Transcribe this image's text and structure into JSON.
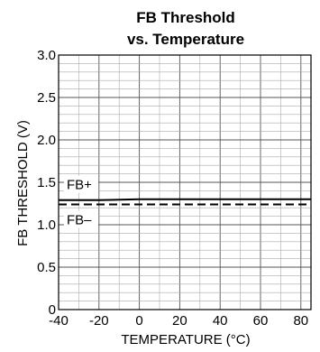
{
  "chart_data": {
    "type": "line",
    "title": "FB Threshold",
    "subtitle": "vs. Temperature",
    "xlabel": "TEMPERATURE (°C)",
    "ylabel": "FB THRESHOLD (V)",
    "xlim": [
      -40,
      85
    ],
    "ylim": [
      0,
      3.0
    ],
    "x_ticks": [
      -40,
      -20,
      0,
      20,
      40,
      60,
      80
    ],
    "x_tick_labels": [
      "-40",
      "-20",
      "0",
      "20",
      "40",
      "60",
      "80"
    ],
    "y_ticks": [
      0,
      0.5,
      1.0,
      1.5,
      2.0,
      2.5,
      3.0
    ],
    "y_tick_labels": [
      "0",
      "0.5",
      "1.0",
      "1.5",
      "2.0",
      "2.5",
      "3.0"
    ],
    "grid": true,
    "series": [
      {
        "name": "FB+",
        "line_style": "solid",
        "color": "#000000",
        "x": [
          -40,
          -20,
          0,
          20,
          40,
          60,
          85
        ],
        "y": [
          1.29,
          1.29,
          1.3,
          1.3,
          1.3,
          1.3,
          1.3
        ]
      },
      {
        "name": "FB–",
        "line_style": "dashed",
        "color": "#000000",
        "x": [
          -40,
          -20,
          0,
          20,
          40,
          60,
          85
        ],
        "y": [
          1.24,
          1.24,
          1.24,
          1.24,
          1.24,
          1.24,
          1.24
        ]
      }
    ]
  }
}
